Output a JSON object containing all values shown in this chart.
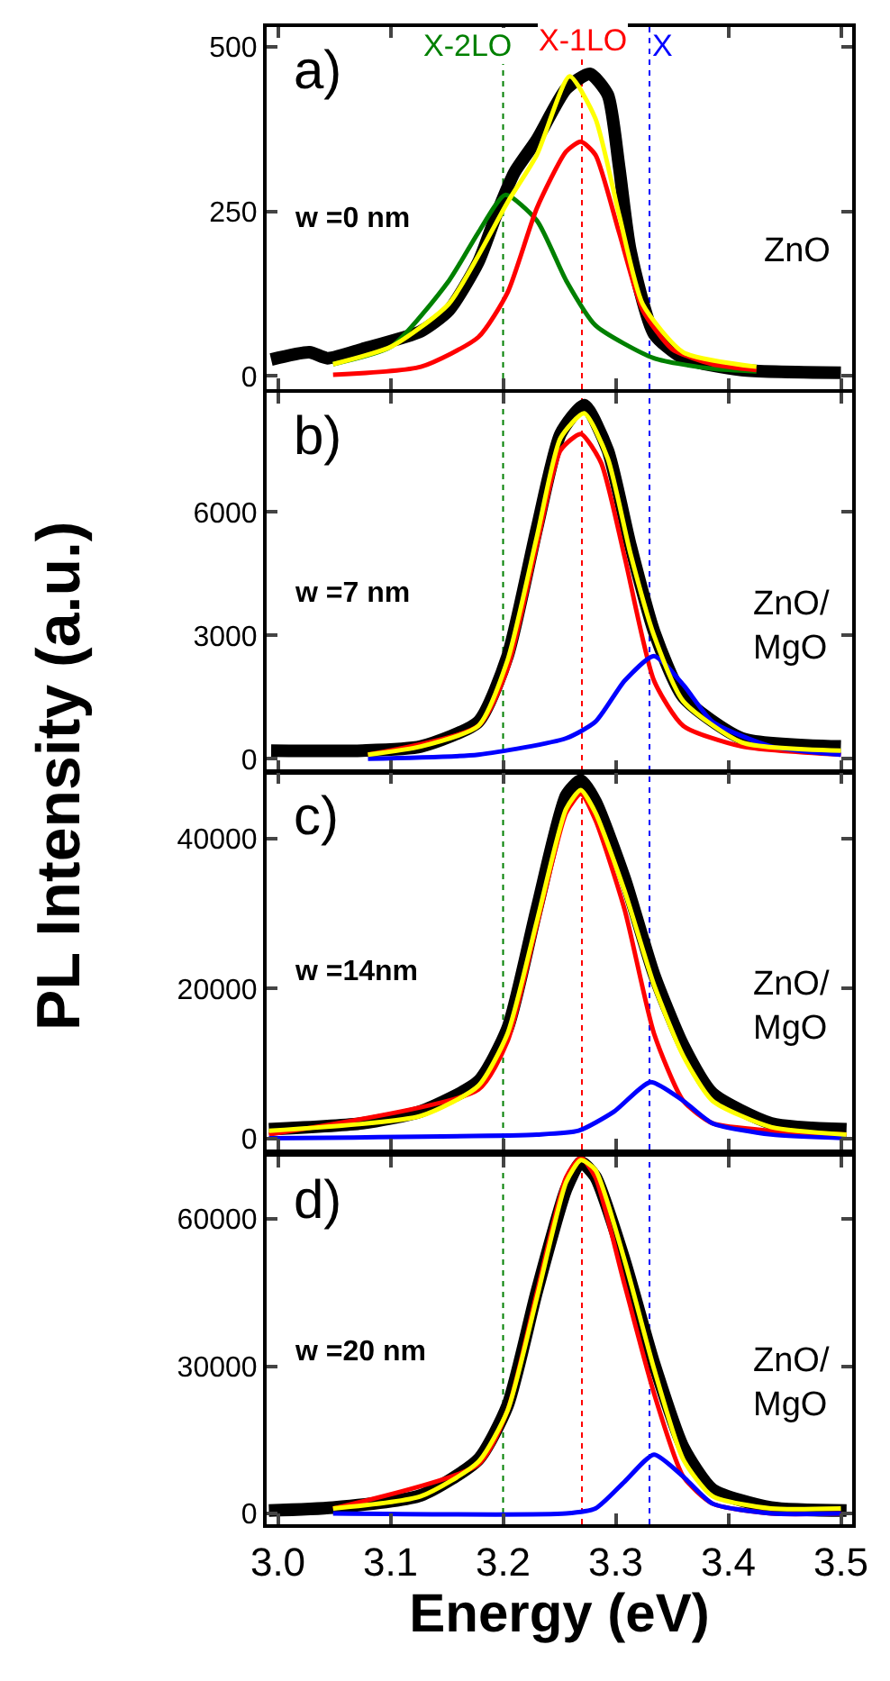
{
  "chart_data": [
    {
      "type": "line",
      "ylabel": "PL Intensity (a.u.)",
      "annotations": [
        "a)",
        "w =0 nm",
        "ZnO"
      ],
      "xlim": [
        2.99,
        3.51
      ],
      "xticks": [
        {
          "value": 3.0,
          "label": null
        },
        {
          "value": 3.1,
          "label": null
        },
        {
          "value": 3.2,
          "label": null
        },
        {
          "value": 3.3,
          "label": null
        },
        {
          "value": 3.4,
          "label": null
        },
        {
          "value": 3.5,
          "label": null
        }
      ],
      "ylim": [
        -20,
        530
      ],
      "yticks": [
        0,
        250,
        500
      ],
      "tick_labels": "y",
      "ref_lines": [
        {
          "axis": "x",
          "value": 3.2,
          "label": "X-2LO",
          "color": "#008000",
          "line_style": "dotted"
        },
        {
          "axis": "x",
          "value": 3.27,
          "label": "X-1LO",
          "color": "#ff0000",
          "line_style": "dotted"
        },
        {
          "axis": "x",
          "value": 3.33,
          "label": "X",
          "color": "#0000ff",
          "line_style": "dotted"
        }
      ],
      "series": [
        {
          "color": "#000000",
          "x": [
            2.994,
            3.028,
            3.044,
            3.075,
            3.127,
            3.152,
            3.178,
            3.194,
            3.21,
            3.23,
            3.256,
            3.277,
            3.293,
            3.303,
            3.313,
            3.334,
            3.36,
            3.412,
            3.5
          ],
          "values": [
            25,
            36,
            27,
            41,
            68,
            100,
            173,
            245,
            309,
            359,
            436,
            459,
            427,
            318,
            191,
            64,
            27,
            9,
            5
          ]
        },
        {
          "color": "#008000",
          "x": [
            3.049,
            3.101,
            3.152,
            3.178,
            3.202,
            3.23,
            3.256,
            3.282,
            3.334,
            3.386,
            3.425
          ],
          "values": [
            18,
            45,
            145,
            218,
            275,
            236,
            145,
            77,
            27,
            11,
            7
          ]
        },
        {
          "color": "#ff0000",
          "x": [
            3.049,
            3.127,
            3.178,
            3.204,
            3.23,
            3.256,
            3.269,
            3.282,
            3.303,
            3.324,
            3.35,
            3.386,
            3.425
          ],
          "values": [
            2,
            14,
            59,
            127,
            255,
            341,
            356,
            336,
            218,
            100,
            41,
            18,
            9
          ]
        },
        {
          "color": "#ffff00",
          "x": [
            3.049,
            3.101,
            3.152,
            3.204,
            3.23,
            3.259,
            3.282,
            3.303,
            3.324,
            3.36,
            3.425
          ],
          "values": [
            18,
            45,
            110,
            264,
            336,
            455,
            391,
            245,
            109,
            36,
            14
          ]
        }
      ]
    },
    {
      "type": "line",
      "annotations": [
        "b)",
        "w =7 nm",
        "ZnO/\nMgO"
      ],
      "xlim": [
        2.99,
        3.51
      ],
      "xticks": [
        {
          "value": 3.0,
          "label": null
        },
        {
          "value": 3.1,
          "label": null
        },
        {
          "value": 3.2,
          "label": null
        },
        {
          "value": 3.3,
          "label": null
        },
        {
          "value": 3.4,
          "label": null
        },
        {
          "value": 3.5,
          "label": null
        }
      ],
      "ylim": [
        -300,
        8900
      ],
      "yticks": [
        0,
        3000,
        6000
      ],
      "tick_labels": "y",
      "ref_lines": [
        {
          "axis": "x",
          "value": 3.2,
          "color": "#008000",
          "line_style": "dotted"
        },
        {
          "axis": "x",
          "value": 3.27,
          "color": "#ff0000",
          "line_style": "dotted"
        },
        {
          "axis": "x",
          "value": 3.33,
          "color": "#0000ff",
          "line_style": "dotted"
        }
      ],
      "series": [
        {
          "color": "#000000",
          "x": [
            2.994,
            3.075,
            3.127,
            3.178,
            3.204,
            3.23,
            3.251,
            3.272,
            3.293,
            3.313,
            3.334,
            3.36,
            3.412,
            3.5
          ],
          "values": [
            200,
            200,
            300,
            900,
            2500,
            5600,
            7900,
            8600,
            7500,
            5200,
            3100,
            1500,
            500,
            300
          ]
        },
        {
          "color": "#ff0000",
          "x": [
            3.08,
            3.178,
            3.204,
            3.23,
            3.251,
            3.269,
            3.287,
            3.308,
            3.334,
            3.36,
            3.412,
            3.5
          ],
          "values": [
            100,
            800,
            2200,
            5200,
            7500,
            7900,
            7200,
            4900,
            1900,
            800,
            300,
            100
          ]
        },
        {
          "color": "#0000ff",
          "x": [
            3.08,
            3.178,
            3.256,
            3.282,
            3.308,
            3.334,
            3.36,
            3.386,
            3.438,
            3.5
          ],
          "values": [
            0,
            100,
            500,
            900,
            1900,
            2500,
            1800,
            900,
            300,
            100
          ]
        },
        {
          "color": "#ffff00",
          "x": [
            3.08,
            3.127,
            3.178,
            3.204,
            3.23,
            3.251,
            3.272,
            3.293,
            3.313,
            3.334,
            3.36,
            3.412,
            3.5
          ],
          "values": [
            100,
            300,
            800,
            2400,
            5400,
            7800,
            8400,
            7300,
            5000,
            3000,
            1400,
            400,
            200
          ]
        }
      ]
    },
    {
      "type": "line",
      "annotations": [
        "c)",
        "w =14nm",
        "ZnO/\nMgO"
      ],
      "xlim": [
        2.99,
        3.51
      ],
      "xticks": [
        {
          "value": 3.0,
          "label": null
        },
        {
          "value": 3.1,
          "label": null
        },
        {
          "value": 3.2,
          "label": null
        },
        {
          "value": 3.3,
          "label": null
        },
        {
          "value": 3.4,
          "label": null
        },
        {
          "value": 3.5,
          "label": null
        }
      ],
      "ylim": [
        -1500,
        48800
      ],
      "yticks": [
        0,
        20000,
        40000
      ],
      "tick_labels": "y",
      "ref_lines": [
        {
          "axis": "x",
          "value": 3.2,
          "color": "#008000",
          "line_style": "dotted"
        },
        {
          "axis": "x",
          "value": 3.27,
          "color": "#ff0000",
          "line_style": "dotted"
        },
        {
          "axis": "x",
          "value": 3.33,
          "color": "#0000ff",
          "line_style": "dotted"
        }
      ],
      "series": [
        {
          "color": "#000000",
          "x": [
            2.992,
            3.075,
            3.127,
            3.178,
            3.204,
            3.23,
            3.256,
            3.269,
            3.282,
            3.308,
            3.334,
            3.36,
            3.386,
            3.438,
            3.505
          ],
          "values": [
            1200,
            2000,
            3600,
            7600,
            14700,
            30700,
            45800,
            47800,
            45000,
            34700,
            21900,
            12400,
            6000,
            2000,
            1200
          ]
        },
        {
          "color": "#ff0000",
          "x": [
            2.992,
            3.178,
            3.204,
            3.23,
            3.256,
            3.269,
            3.282,
            3.308,
            3.334,
            3.36,
            3.386,
            3.438,
            3.505
          ],
          "values": [
            500,
            6500,
            13000,
            28500,
            43500,
            46000,
            42500,
            30500,
            14000,
            5000,
            2000,
            1000,
            500
          ]
        },
        {
          "color": "#0000ff",
          "x": [
            2.992,
            3.23,
            3.267,
            3.298,
            3.331,
            3.36,
            3.386,
            3.438,
            3.505
          ],
          "values": [
            0,
            500,
            1000,
            3500,
            7500,
            5000,
            2000,
            500,
            0
          ]
        },
        {
          "color": "#ffff00",
          "x": [
            2.992,
            3.127,
            3.178,
            3.204,
            3.23,
            3.256,
            3.269,
            3.282,
            3.308,
            3.334,
            3.36,
            3.386,
            3.438,
            3.505
          ],
          "values": [
            1000,
            3000,
            7000,
            14000,
            29000,
            44000,
            46500,
            43500,
            33000,
            20500,
            11000,
            5000,
            1500,
            500
          ]
        }
      ]
    },
    {
      "type": "line",
      "xlabel": "Energy (eV)",
      "annotations": [
        "d)",
        "w =20 nm",
        "ZnO/\nMgO"
      ],
      "xlim": [
        2.99,
        3.51
      ],
      "xticks": [
        {
          "value": 3.0,
          "label": "3.0"
        },
        {
          "value": 3.1,
          "label": "3.1"
        },
        {
          "value": 3.2,
          "label": "3.2"
        },
        {
          "value": 3.3,
          "label": "3.3"
        },
        {
          "value": 3.4,
          "label": "3.4"
        },
        {
          "value": 3.5,
          "label": "3.5"
        }
      ],
      "ylim": [
        -2200,
        72700
      ],
      "yticks": [
        0,
        30000,
        60000
      ],
      "ref_lines": [
        {
          "axis": "x",
          "value": 3.2,
          "color": "#008000",
          "line_style": "dotted"
        },
        {
          "axis": "x",
          "value": 3.27,
          "color": "#ff0000",
          "line_style": "dotted"
        },
        {
          "axis": "x",
          "value": 3.33,
          "color": "#0000ff",
          "line_style": "dotted"
        }
      ],
      "series": [
        {
          "color": "#000000",
          "x": [
            2.992,
            3.049,
            3.127,
            3.178,
            3.204,
            3.23,
            3.256,
            3.269,
            3.282,
            3.308,
            3.334,
            3.36,
            3.386,
            3.438,
            3.505
          ],
          "values": [
            600,
            1200,
            3700,
            11000,
            22000,
            45300,
            66100,
            71600,
            68600,
            51400,
            30600,
            13500,
            4900,
            1200,
            600
          ]
        },
        {
          "color": "#ff0000",
          "x": [
            3.049,
            3.178,
            3.204,
            3.23,
            3.256,
            3.269,
            3.282,
            3.308,
            3.334,
            3.36,
            3.386,
            3.438,
            3.5
          ],
          "values": [
            1000,
            10000,
            21000,
            45000,
            68500,
            72500,
            68500,
            46500,
            24500,
            7500,
            2000,
            0,
            0
          ]
        },
        {
          "color": "#0000ff",
          "x": [
            3.049,
            3.256,
            3.282,
            3.308,
            3.334,
            3.36,
            3.386,
            3.438,
            3.5
          ],
          "values": [
            0,
            0,
            1000,
            6500,
            12000,
            7500,
            2000,
            0,
            0
          ]
        },
        {
          "color": "#ffff00",
          "x": [
            3.049,
            3.127,
            3.178,
            3.204,
            3.23,
            3.256,
            3.269,
            3.282,
            3.308,
            3.334,
            3.36,
            3.386,
            3.438,
            3.5
          ],
          "values": [
            1000,
            3500,
            10500,
            21000,
            44000,
            67500,
            72000,
            70000,
            51500,
            29500,
            11000,
            3500,
            1000,
            1000
          ]
        }
      ]
    }
  ]
}
